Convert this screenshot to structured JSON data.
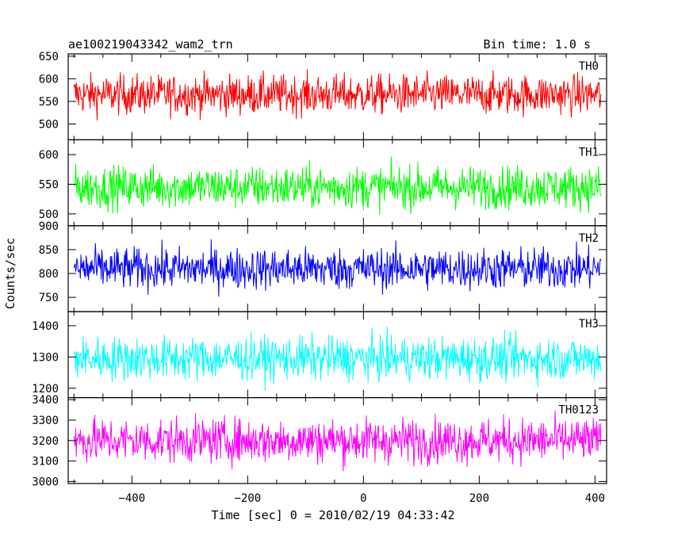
{
  "header": {
    "left_title": "ae100219043342_wam2_trn",
    "right_title": "Bin time: 1.0 s"
  },
  "chart_data": {
    "type": "line",
    "xlabel": "Time [sec] 0 = 2010/02/19 04:33:42",
    "ylabel": "Counts/sec",
    "xlim": [
      -510,
      420
    ],
    "x_ticks": [
      -400,
      -200,
      0,
      200,
      400
    ],
    "x_tick_labels": [
      "−400",
      "−200",
      "0",
      "200",
      "400"
    ],
    "panels": [
      {
        "name": "TH0",
        "color": "#ff0000",
        "ylim": [
          465,
          655
        ],
        "y_ticks": [
          500,
          550,
          600,
          650
        ],
        "mean": 565,
        "noise": 22,
        "xrange": [
          -500,
          410
        ]
      },
      {
        "name": "TH1",
        "color": "#00ff00",
        "ylim": [
          480,
          625
        ],
        "y_ticks": [
          500,
          550,
          600
        ],
        "mean": 545,
        "noise": 18,
        "xrange": [
          -500,
          410
        ]
      },
      {
        "name": "TH2",
        "color": "#0000ff",
        "ylim": [
          720,
          900
        ],
        "y_ticks": [
          750,
          800,
          850,
          900
        ],
        "mean": 810,
        "noise": 22,
        "xrange": [
          -500,
          410
        ]
      },
      {
        "name": "TH3",
        "color": "#00ffff",
        "ylim": [
          1170,
          1445
        ],
        "y_ticks": [
          1200,
          1300,
          1400
        ],
        "mean": 1295,
        "noise": 35,
        "xrange": [
          -500,
          410
        ]
      },
      {
        "name": "TH0123",
        "color": "#ff00ff",
        "ylim": [
          2990,
          3410
        ],
        "y_ticks": [
          3000,
          3100,
          3200,
          3300,
          3400
        ],
        "mean": 3200,
        "noise": 55,
        "xrange": [
          -500,
          410
        ]
      }
    ]
  }
}
